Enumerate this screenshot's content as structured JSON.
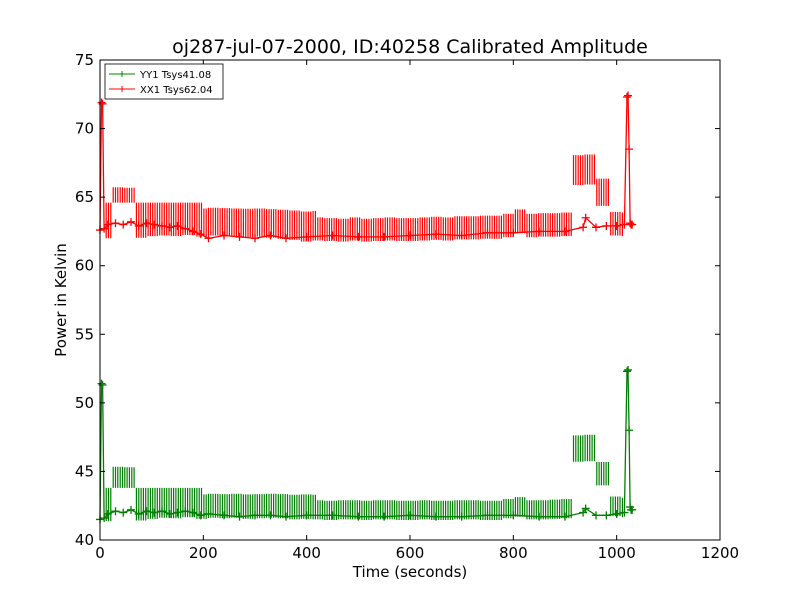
{
  "chart_data": {
    "type": "line",
    "title": "oj287-jul-07-2000, ID:40258 Calibrated Amplitude",
    "xlabel": "Time (seconds)",
    "ylabel": "Power in Kelvin",
    "xlim": [
      0,
      1200
    ],
    "ylim": [
      40,
      75
    ],
    "xticks": [
      0,
      200,
      400,
      600,
      800,
      1000,
      1200
    ],
    "yticks": [
      40,
      45,
      50,
      55,
      60,
      65,
      70,
      75
    ],
    "grid": false,
    "legend_position": "top-left",
    "marker": "plus",
    "series": [
      {
        "name": "YY1 Tsys41.08",
        "color": "#008000",
        "x": [
          0,
          3,
          5,
          8,
          15,
          30,
          45,
          60,
          75,
          90,
          105,
          120,
          135,
          150,
          165,
          180,
          195,
          210,
          240,
          270,
          300,
          330,
          360,
          400,
          450,
          500,
          550,
          600,
          650,
          700,
          750,
          800,
          850,
          900,
          935,
          940,
          960,
          980,
          1000,
          1015,
          1020,
          1022,
          1024,
          1026,
          1028,
          1030
        ],
        "y": [
          41.5,
          51.4,
          51.3,
          41.6,
          41.9,
          42.1,
          42.0,
          42.2,
          41.9,
          42.1,
          42.0,
          42.1,
          41.9,
          42.0,
          42.1,
          42.0,
          41.8,
          41.9,
          41.8,
          41.7,
          41.8,
          41.8,
          41.7,
          41.8,
          41.8,
          41.7,
          41.7,
          41.8,
          41.7,
          41.7,
          41.8,
          41.8,
          41.7,
          41.7,
          42.0,
          42.3,
          41.8,
          41.8,
          41.9,
          42.0,
          52.3,
          52.4,
          48.0,
          42.4,
          42.2,
          42.2
        ],
        "band": [
          41.3,
          43.8
        ]
      },
      {
        "name": "XX1 Tsys62.04",
        "color": "#ff0000",
        "x": [
          0,
          3,
          5,
          8,
          15,
          30,
          45,
          60,
          75,
          90,
          105,
          120,
          135,
          150,
          165,
          180,
          195,
          210,
          240,
          270,
          300,
          330,
          360,
          400,
          450,
          500,
          550,
          600,
          650,
          700,
          750,
          800,
          850,
          900,
          935,
          940,
          960,
          980,
          1000,
          1015,
          1020,
          1022,
          1024,
          1026,
          1028,
          1030
        ],
        "y": [
          62.6,
          71.9,
          71.8,
          62.7,
          63.0,
          63.1,
          63.0,
          63.2,
          62.9,
          63.1,
          63.0,
          62.9,
          62.8,
          62.9,
          62.7,
          62.5,
          62.3,
          62.0,
          62.2,
          62.1,
          62.0,
          62.2,
          62.0,
          62.1,
          62.2,
          62.1,
          62.1,
          62.2,
          62.3,
          62.2,
          62.4,
          62.4,
          62.5,
          62.5,
          62.8,
          63.5,
          62.8,
          62.9,
          62.9,
          63.0,
          72.3,
          72.4,
          68.5,
          63.1,
          63.0,
          63.0
        ],
        "band": [
          61.6,
          64.6
        ]
      }
    ]
  }
}
